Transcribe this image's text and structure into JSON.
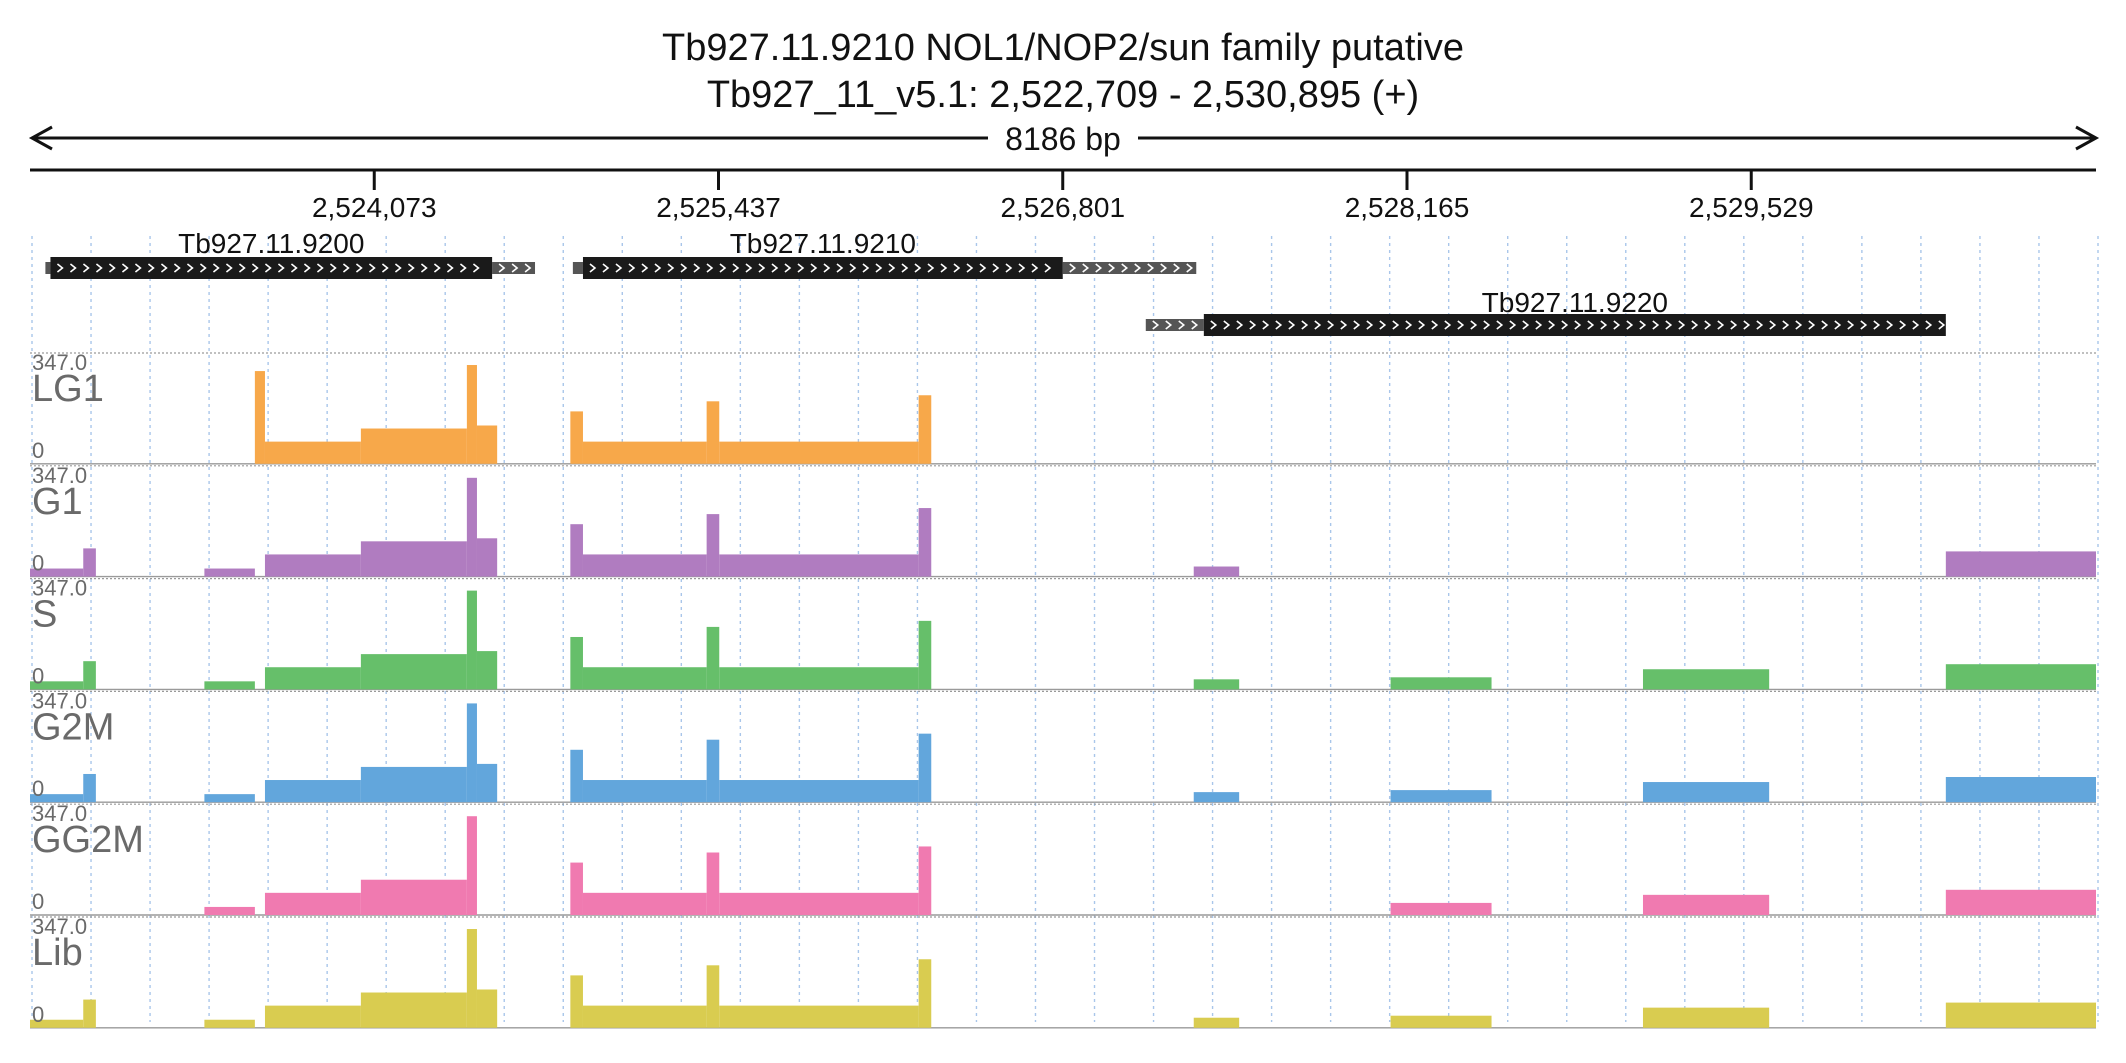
{
  "title": {
    "line1": "Tb927.11.9210  NOL1/NOP2/sun family  putative",
    "line2": "Tb927_11_v5.1: 2,522,709 - 2,530,895 (+)"
  },
  "ruler": {
    "span_label": "8186 bp",
    "ticks": [
      "2,524,073",
      "2,525,437",
      "2,526,801",
      "2,528,165",
      "2,529,529"
    ]
  },
  "chart_data": {
    "type": "area",
    "chromosome": "Tb927_11_v5.1",
    "strand": "+",
    "x_range": [
      2522709,
      2530895
    ],
    "ymax_label": "347.0",
    "ymin_label": "0",
    "genes": [
      {
        "name": "Tb927.11.9200",
        "utr5": [
          2522770,
          2522790
        ],
        "cds": [
          2522790,
          2524540
        ],
        "utr3": [
          2524540,
          2524710
        ]
      },
      {
        "name": "Tb927.11.9210",
        "utr5": [
          2524860,
          2524900
        ],
        "cds": [
          2524900,
          2526801
        ],
        "utr3": [
          2526801,
          2527330
        ]
      },
      {
        "name": "Tb927.11.9220",
        "utr5": [
          2527130,
          2527360
        ],
        "cds": [
          2527360,
          2530300
        ],
        "utr3": []
      }
    ],
    "tracks": [
      {
        "name": "LG1",
        "color": "#f7a84a"
      },
      {
        "name": "G1",
        "color": "#b07cc0"
      },
      {
        "name": "S",
        "color": "#66bf6a"
      },
      {
        "name": "G2M",
        "color": "#62a6dc"
      },
      {
        "name": "GG2M",
        "color": "#f07ab0"
      },
      {
        "name": "Lib",
        "color": "#d9cc50"
      }
    ],
    "coverage_regions": [
      {
        "start": 2522709,
        "end": 2522920,
        "level": 0.08,
        "tracks": [
          "G1",
          "S",
          "G2M",
          "Lib"
        ]
      },
      {
        "start": 2522920,
        "end": 2522970,
        "level": 0.28,
        "tracks": [
          "G1",
          "S",
          "G2M",
          "Lib"
        ]
      },
      {
        "start": 2523400,
        "end": 2523600,
        "level": 0.08,
        "tracks": [
          "G1",
          "S",
          "G2M",
          "GG2M",
          "Lib"
        ]
      },
      {
        "start": 2523600,
        "end": 2523640,
        "level": 0.92,
        "tracks": [
          "LG1"
        ]
      },
      {
        "start": 2523640,
        "end": 2524020,
        "level": 0.22,
        "tracks": [
          "LG1",
          "G1",
          "S",
          "G2M",
          "GG2M",
          "Lib"
        ]
      },
      {
        "start": 2524020,
        "end": 2524440,
        "level": 0.35,
        "tracks": [
          "LG1",
          "G1",
          "S",
          "G2M",
          "GG2M",
          "Lib"
        ]
      },
      {
        "start": 2524440,
        "end": 2524480,
        "level": 0.98,
        "tracks": [
          "LG1",
          "G1",
          "S",
          "G2M",
          "GG2M",
          "Lib"
        ]
      },
      {
        "start": 2524480,
        "end": 2524560,
        "level": 0.38,
        "tracks": [
          "LG1",
          "G1",
          "S",
          "G2M",
          "Lib"
        ]
      },
      {
        "start": 2524850,
        "end": 2524900,
        "level": 0.52,
        "tracks": [
          "LG1",
          "G1",
          "S",
          "G2M",
          "GG2M",
          "Lib"
        ]
      },
      {
        "start": 2524900,
        "end": 2525390,
        "level": 0.22,
        "tracks": [
          "LG1",
          "G1",
          "S",
          "G2M",
          "GG2M",
          "Lib"
        ]
      },
      {
        "start": 2525390,
        "end": 2525440,
        "level": 0.62,
        "tracks": [
          "LG1",
          "G1",
          "S",
          "G2M",
          "GG2M",
          "Lib"
        ]
      },
      {
        "start": 2525440,
        "end": 2526230,
        "level": 0.22,
        "tracks": [
          "LG1",
          "G1",
          "S",
          "G2M",
          "GG2M",
          "Lib"
        ]
      },
      {
        "start": 2526230,
        "end": 2526280,
        "level": 0.68,
        "tracks": [
          "LG1",
          "G1",
          "S",
          "G2M",
          "GG2M",
          "Lib"
        ]
      },
      {
        "start": 2527320,
        "end": 2527500,
        "level": 0.1,
        "tracks": [
          "G1",
          "S",
          "G2M",
          "Lib"
        ]
      },
      {
        "start": 2528100,
        "end": 2528500,
        "level": 0.12,
        "tracks": [
          "S",
          "G2M",
          "GG2M",
          "Lib"
        ]
      },
      {
        "start": 2529100,
        "end": 2529600,
        "level": 0.2,
        "tracks": [
          "S",
          "G2M",
          "GG2M",
          "Lib"
        ]
      },
      {
        "start": 2530300,
        "end": 2530895,
        "level": 0.25,
        "tracks": [
          "G1",
          "S",
          "G2M",
          "GG2M",
          "Lib"
        ]
      }
    ]
  }
}
